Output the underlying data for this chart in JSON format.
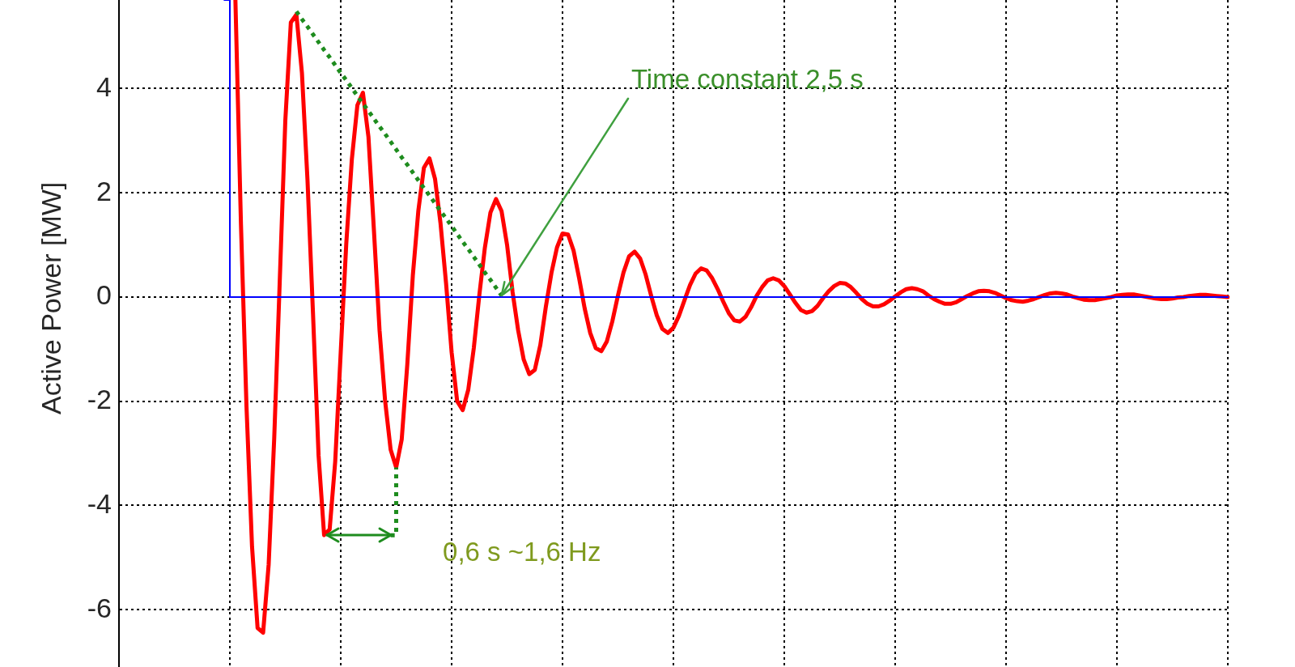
{
  "chart_data": {
    "type": "line",
    "ylabel": "Active Power [MW]",
    "categories": [
      null,
      null,
      null,
      null,
      null,
      null,
      null,
      null,
      null,
      null,
      null,
      null,
      null,
      null,
      null,
      null,
      null,
      null,
      null,
      null,
      null,
      null,
      null,
      null,
      null,
      null,
      null,
      null,
      null,
      null,
      null,
      null,
      null,
      null,
      null,
      null,
      null,
      null,
      null,
      null,
      null,
      null,
      null,
      null,
      null,
      null,
      null,
      null,
      null,
      null,
      null,
      null,
      null,
      null,
      null,
      null,
      null,
      null,
      null,
      null,
      null,
      null,
      null,
      null,
      null,
      null,
      null,
      null,
      null,
      null,
      null,
      null,
      null,
      null,
      null,
      null,
      null,
      null,
      null,
      null,
      null,
      null,
      null,
      null,
      null,
      null,
      null,
      null,
      null,
      null,
      null,
      null,
      null,
      null,
      null,
      null,
      null,
      null,
      null,
      null,
      null,
      null,
      null,
      null,
      null,
      null,
      null,
      null,
      null,
      null,
      null,
      null,
      null,
      null,
      null,
      null,
      null,
      null,
      null,
      null,
      null,
      null,
      null,
      null,
      null,
      null,
      null,
      null,
      null,
      null,
      null,
      null,
      null,
      null,
      null,
      null,
      null,
      null,
      null,
      null,
      null,
      null,
      null,
      null,
      null,
      null,
      null,
      null,
      null,
      null,
      null,
      null,
      null,
      null,
      null,
      null,
      null,
      null,
      null,
      null,
      null,
      null,
      null,
      null,
      null,
      null,
      null,
      null,
      null,
      null,
      null,
      null,
      null,
      null,
      null,
      null,
      null,
      null,
      null,
      null,
      null,
      null,
      null,
      null,
      null,
      null,
      null,
      null,
      null,
      null,
      null,
      null,
      null,
      null,
      null,
      null,
      null,
      null,
      null,
      null,
      null
    ],
    "series": [
      {
        "type": "line",
        "color": "#ff0000",
        "values": [
          null,
          null,
          null,
          null,
          null,
          null,
          null,
          null,
          null,
          null,
          null,
          null,
          null,
          null,
          null,
          null,
          null,
          null,
          null,
          null,
          null,
          5.7,
          1.4,
          -2.1,
          -4.79,
          -6.35,
          -6.44,
          -5.13,
          -2.71,
          0.31,
          3.38,
          5.27,
          5.42,
          4.3,
          2.25,
          -0.33,
          -3.04,
          -4.57,
          -4.46,
          -3.16,
          -1.05,
          1.03,
          2.64,
          3.68,
          3.92,
          3.07,
          1.25,
          -0.64,
          -1.99,
          -2.93,
          -3.27,
          -2.73,
          -1.3,
          0.41,
          1.66,
          2.48,
          2.66,
          2.27,
          1.41,
          0.26,
          -1.06,
          -2,
          -2.17,
          -1.78,
          -0.98,
          0.04,
          0.95,
          1.62,
          1.88,
          1.65,
          1,
          0.09,
          -0.64,
          -1.2,
          -1.48,
          -1.4,
          -0.92,
          -0.18,
          0.46,
          0.95,
          1.22,
          1.2,
          0.89,
          0.36,
          -0.22,
          -0.69,
          -0.98,
          -1.04,
          -0.85,
          -0.46,
          0.03,
          0.47,
          0.78,
          0.87,
          0.74,
          0.43,
          0.02,
          -0.35,
          -0.61,
          -0.69,
          -0.59,
          -0.36,
          -0.06,
          0.23,
          0.45,
          0.55,
          0.51,
          0.36,
          0.15,
          -0.09,
          -0.31,
          -0.45,
          -0.47,
          -0.38,
          -0.2,
          0.02,
          0.19,
          0.32,
          0.36,
          0.32,
          0.21,
          0.05,
          -0.11,
          -0.25,
          -0.3,
          -0.27,
          -0.17,
          -0.02,
          0.11,
          0.21,
          0.27,
          0.26,
          0.19,
          0.08,
          -0.04,
          -0.13,
          -0.18,
          -0.18,
          -0.14,
          -0.07,
          0.01,
          0.09,
          0.15,
          0.17,
          0.15,
          0.11,
          0.03,
          -0.04,
          -0.09,
          -0.13,
          -0.13,
          -0.1,
          -0.04,
          0.02,
          0.07,
          0.11,
          0.12,
          0.11,
          0.08,
          0.03,
          -0.02,
          -0.06,
          -0.08,
          -0.09,
          -0.07,
          -0.04,
          0,
          0.04,
          0.07,
          0.08,
          0.07,
          0.05,
          0.01,
          -0.02,
          -0.05,
          -0.06,
          -0.06,
          -0.04,
          -0.02,
          0,
          0.03,
          0.04,
          0.05,
          0.05,
          0.03,
          0.01,
          -0.01,
          -0.03,
          -0.04,
          -0.04,
          -0.03,
          -0.01,
          0,
          0.02,
          0.03,
          0.04,
          0.04,
          0.03,
          0.02,
          0.01,
          0
        ]
      },
      {
        "type": "step",
        "color": "#0000ff",
        "values": [
          null,
          null,
          null,
          null,
          null,
          null,
          null,
          null,
          null,
          null,
          null,
          null,
          null,
          null,
          null,
          null,
          null,
          null,
          null,
          5.7,
          0,
          0,
          0,
          0,
          0,
          0,
          0,
          0,
          0,
          0,
          0,
          0,
          0,
          0,
          0,
          0,
          0,
          0,
          0,
          0,
          0,
          0,
          0,
          0,
          0,
          0,
          0,
          0,
          0,
          0,
          0,
          0,
          0,
          0,
          0,
          0,
          0,
          0,
          0,
          0,
          0,
          0,
          0,
          0,
          0,
          0,
          0,
          0,
          0,
          0,
          0,
          0,
          0,
          0,
          0,
          0,
          0,
          0,
          0,
          0,
          0,
          0,
          0,
          0,
          0,
          0,
          0,
          0,
          0,
          0,
          0,
          0,
          0,
          0,
          0,
          0,
          0,
          0,
          0,
          0,
          0,
          0,
          0,
          0,
          0,
          0,
          0,
          0,
          0,
          0,
          0,
          0,
          0,
          0,
          0,
          0,
          0,
          0,
          0,
          0,
          0,
          0,
          0,
          0,
          0,
          0,
          0,
          0,
          0,
          0,
          0,
          0,
          0,
          0,
          0,
          0,
          0,
          0,
          0,
          0,
          0,
          0,
          0,
          0,
          0,
          0,
          0,
          0,
          0,
          0,
          0,
          0,
          0,
          0,
          0,
          0,
          0,
          0,
          0,
          0,
          0,
          0,
          0,
          0,
          0,
          0,
          0,
          0,
          0,
          0,
          0,
          0,
          0,
          0,
          0,
          0,
          0,
          0,
          0,
          0,
          0,
          0,
          0,
          0,
          0,
          0,
          0,
          0,
          0,
          0,
          0,
          0,
          0,
          0,
          0,
          0,
          0,
          0,
          0,
          0,
          0
        ]
      },
      {
        "type": "line",
        "color": "#1e8c1e",
        "line_style": "dotted",
        "values": [
          null,
          null,
          null,
          null,
          null,
          null,
          null,
          null,
          null,
          null,
          null,
          null,
          null,
          null,
          null,
          null,
          null,
          null,
          null,
          null,
          null,
          null,
          null,
          null,
          null,
          null,
          null,
          null,
          null,
          null,
          null,
          null,
          5.48,
          5.33,
          5.19,
          5.04,
          4.89,
          4.74,
          4.6,
          4.45,
          4.3,
          4.16,
          4.01,
          3.86,
          3.71,
          3.57,
          3.42,
          3.27,
          3.13,
          2.98,
          2.83,
          2.68,
          2.54,
          2.39,
          2.24,
          2.09,
          1.95,
          1.8,
          1.65,
          1.51,
          1.36,
          1.21,
          1.06,
          0.92,
          0.77,
          0.62,
          0.47,
          0.33,
          0.18,
          0.03,
          null,
          null,
          null,
          null,
          null,
          null,
          null,
          null,
          null,
          null,
          null,
          null,
          null,
          null,
          null,
          null,
          null,
          null,
          null,
          null,
          null,
          null,
          null,
          null,
          null,
          null,
          null,
          null,
          null,
          null,
          null,
          null,
          null,
          null,
          null,
          null,
          null,
          null,
          null,
          null,
          null,
          null,
          null,
          null,
          null,
          null,
          null,
          null,
          null,
          null,
          null,
          null,
          null,
          null,
          null,
          null,
          null,
          null,
          null,
          null,
          null,
          null,
          null,
          null,
          null,
          null,
          null,
          null,
          null,
          null,
          null,
          null,
          null,
          null,
          null,
          null,
          null,
          null,
          null,
          null,
          null,
          null,
          null,
          null,
          null,
          null,
          null,
          null,
          null,
          null,
          null,
          null,
          null,
          null,
          null,
          null,
          null,
          null,
          null,
          null,
          null,
          null,
          null,
          null,
          null,
          null,
          null,
          null,
          null,
          null,
          null,
          null,
          null,
          null,
          null,
          null,
          null,
          null,
          null,
          null,
          null,
          null,
          null,
          null,
          null,
          null,
          null,
          null,
          null,
          null,
          null
        ]
      },
      {
        "type": "step",
        "color": "#1e8c1e",
        "line_style": "dotted",
        "values": [
          null,
          null,
          null,
          null,
          null,
          null,
          null,
          null,
          null,
          null,
          null,
          null,
          null,
          null,
          null,
          null,
          null,
          null,
          null,
          null,
          null,
          null,
          null,
          null,
          null,
          null,
          null,
          null,
          null,
          null,
          null,
          null,
          null,
          null,
          null,
          null,
          null,
          null,
          null,
          null,
          null,
          null,
          null,
          null,
          null,
          null,
          null,
          null,
          null,
          -4.57,
          -3.27,
          null,
          null,
          null,
          null,
          null,
          null,
          null,
          null,
          null,
          null,
          null,
          null,
          null,
          null,
          null,
          null,
          null,
          null,
          null,
          null,
          null,
          null,
          null,
          null,
          null,
          null,
          null,
          null,
          null,
          null,
          null,
          null,
          null,
          null,
          null,
          null,
          null,
          null,
          null,
          null,
          null,
          null,
          null,
          null,
          null,
          null,
          null,
          null,
          null,
          null,
          null,
          null,
          null,
          null,
          null,
          null,
          null,
          null,
          null,
          null,
          null,
          null,
          null,
          null,
          null,
          null,
          null,
          null,
          null,
          null,
          null,
          null,
          null,
          null,
          null,
          null,
          null,
          null,
          null,
          null,
          null,
          null,
          null,
          null,
          null,
          null,
          null,
          null,
          null,
          null,
          null,
          null,
          null,
          null,
          null,
          null,
          null,
          null,
          null,
          null,
          null,
          null,
          null,
          null,
          null,
          null,
          null,
          null,
          null,
          null,
          null,
          null,
          null,
          null,
          null,
          null,
          null,
          null,
          null,
          null,
          null,
          null,
          null,
          null,
          null,
          null,
          null,
          null,
          null,
          null,
          null,
          null,
          null,
          null,
          null,
          null,
          null,
          null,
          null,
          null,
          null,
          null,
          null,
          null,
          null,
          null,
          null,
          null,
          null,
          null
        ]
      }
    ],
    "ylim": [
      -7.1,
      5.7
    ],
    "yticks": [
      -6,
      -4,
      -2,
      0,
      2,
      4
    ],
    "grid": true,
    "legend": false,
    "marker": "none",
    "tick_labels": "y",
    "annotations": [
      "Time constant 2,5 s",
      "0,6 s ~1,6 Hz"
    ]
  }
}
